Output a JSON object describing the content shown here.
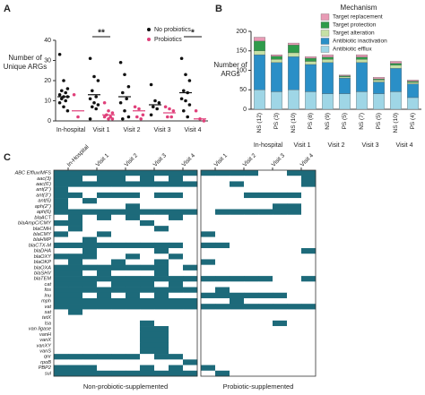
{
  "chart_data": [
    {
      "type": "strip",
      "panel": "A",
      "y_label": "Number of Unique ARGs",
      "categories": [
        "In-hospital",
        "Visit 1",
        "Visit 2",
        "Visit 3",
        "Visit 4"
      ],
      "ylim": [
        0,
        40
      ],
      "yticks": [
        0,
        10,
        20,
        30,
        40
      ],
      "significance": [
        null,
        "**",
        null,
        null,
        "*"
      ],
      "series": [
        {
          "name": "No probiotics",
          "color": "#111111",
          "values": [
            [
              33,
              20,
              16,
              15,
              14,
              13,
              12,
              12,
              11,
              10,
              9,
              7,
              5
            ],
            [
              31,
              22,
              20,
              15,
              12,
              11,
              9,
              8,
              7,
              6,
              1
            ],
            [
              29,
              23,
              17,
              14,
              11,
              9,
              5,
              2,
              1
            ],
            [
              18,
              10,
              9,
              7,
              6,
              3
            ],
            [
              31,
              23,
              20,
              15,
              14,
              11,
              10,
              8,
              5,
              2
            ]
          ],
          "means": [
            12,
            13,
            12,
            8,
            14
          ]
        },
        {
          "name": "Probiotics",
          "color": "#e0407a",
          "values": [
            [
              13,
              2
            ],
            [
              9,
              5,
              4,
              3,
              2,
              2,
              1,
              1
            ],
            [
              7,
              6,
              3,
              2,
              1
            ],
            [
              7,
              6,
              5,
              2,
              2
            ],
            [
              5,
              1,
              0
            ]
          ],
          "means": [
            5,
            3,
            5,
            4,
            1
          ]
        }
      ]
    },
    {
      "type": "bar",
      "panel": "B",
      "y_label": "Number of ARGs",
      "legend_title": "Mechanism",
      "categories": [
        "NS (12)",
        "PS (3)",
        "NS (10)",
        "PS (8)",
        "NS (9)",
        "PS (5)",
        "NS (7)",
        "PS (5)",
        "NS (10)",
        "PS (4)"
      ],
      "groups": [
        "In-hospital",
        "Visit 1",
        "Visit 2",
        "Visit 3",
        "Visit 4"
      ],
      "ylim": [
        0,
        200
      ],
      "yticks": [
        0,
        50,
        100,
        150,
        200
      ],
      "series": [
        {
          "name": "Antibiotic efflux",
          "color": "#9fd6e6",
          "values": [
            50,
            45,
            50,
            45,
            40,
            40,
            45,
            40,
            45,
            30
          ]
        },
        {
          "name": "Antibiotic inactivation",
          "color": "#2a8fc7",
          "values": [
            90,
            75,
            85,
            70,
            80,
            40,
            75,
            30,
            60,
            35
          ]
        },
        {
          "name": "Target alteration",
          "color": "#c5e0a5",
          "values": [
            10,
            8,
            10,
            8,
            8,
            3,
            8,
            5,
            8,
            4
          ]
        },
        {
          "name": "Target protection",
          "color": "#2e9b4a",
          "values": [
            25,
            8,
            20,
            8,
            6,
            3,
            6,
            3,
            5,
            3
          ]
        },
        {
          "name": "Target replacement",
          "color": "#e89bb5",
          "values": [
            10,
            4,
            5,
            4,
            6,
            2,
            6,
            4,
            5,
            3
          ]
        }
      ]
    },
    {
      "type": "heatmap",
      "panel": "C",
      "color": "#1d6a7a",
      "row_labels": [
        "ABC Efflux/MFS",
        "aac(3)",
        "aac(6')",
        "ant(2'')",
        "ant(3'')",
        "ant(6)",
        "aph(2'')",
        "aph(6)",
        "blaACT",
        "blaAmpC/CMY",
        "blaCMH",
        "blaCMY",
        "blaHMP",
        "blaCTX-M",
        "blaDHA",
        "blaOXY",
        "blaOKP",
        "blaOXA",
        "blaSHV",
        "blaTEM",
        "cat",
        "fos",
        "lnu",
        "mph",
        "vat",
        "sat",
        "tetX",
        "lsa",
        "van ligase",
        "vanH",
        "vanX",
        "vanXY",
        "vanS",
        "qnr",
        "rpoB",
        "PBP2",
        "sul"
      ],
      "blocks": [
        {
          "name": "Non-probiotic-supplemented",
          "x_labels": [
            "In-Hospital",
            "Visit 1",
            "Visit 2",
            "Visit 3",
            "Visit 4"
          ],
          "rows": [
            [
              1,
              1,
              1,
              1,
              1,
              1,
              1,
              1,
              1,
              1
            ],
            [
              1,
              1,
              0,
              1,
              1,
              0,
              1,
              0,
              1,
              0
            ],
            [
              1,
              1,
              1,
              1,
              1,
              1,
              1,
              1,
              1,
              1
            ],
            [
              1,
              0,
              0,
              0,
              0,
              0,
              0,
              0,
              0,
              0
            ],
            [
              1,
              1,
              0,
              1,
              1,
              1,
              0,
              1,
              1,
              0
            ],
            [
              1,
              0,
              1,
              0,
              0,
              0,
              0,
              0,
              0,
              0
            ],
            [
              1,
              0,
              0,
              0,
              0,
              1,
              0,
              0,
              0,
              0
            ],
            [
              1,
              1,
              1,
              1,
              1,
              1,
              1,
              1,
              1,
              1
            ],
            [
              0,
              1,
              0,
              1,
              0,
              1,
              0,
              0,
              1,
              0
            ],
            [
              1,
              1,
              0,
              0,
              0,
              0,
              1,
              0,
              0,
              0
            ],
            [
              0,
              1,
              0,
              0,
              0,
              0,
              0,
              1,
              0,
              0
            ],
            [
              1,
              0,
              0,
              1,
              0,
              0,
              0,
              0,
              0,
              0
            ],
            [
              0,
              0,
              1,
              0,
              0,
              0,
              0,
              0,
              0,
              0
            ],
            [
              1,
              1,
              1,
              1,
              1,
              1,
              1,
              1,
              1,
              0
            ],
            [
              0,
              0,
              1,
              0,
              0,
              0,
              0,
              1,
              0,
              0
            ],
            [
              1,
              1,
              1,
              0,
              0,
              1,
              0,
              0,
              1,
              0
            ],
            [
              0,
              1,
              0,
              0,
              1,
              0,
              0,
              1,
              0,
              0
            ],
            [
              1,
              1,
              1,
              1,
              1,
              1,
              1,
              1,
              0,
              1
            ],
            [
              1,
              1,
              0,
              1,
              0,
              0,
              0,
              1,
              0,
              0
            ],
            [
              1,
              1,
              1,
              1,
              1,
              1,
              1,
              1,
              1,
              1
            ],
            [
              1,
              1,
              1,
              0,
              1,
              1,
              1,
              0,
              1,
              0
            ],
            [
              1,
              1,
              1,
              1,
              1,
              1,
              1,
              1,
              1,
              1
            ],
            [
              1,
              1,
              0,
              1,
              0,
              1,
              0,
              1,
              0,
              0
            ],
            [
              1,
              1,
              1,
              1,
              1,
              1,
              1,
              1,
              1,
              1
            ],
            [
              1,
              1,
              1,
              1,
              1,
              1,
              1,
              1,
              1,
              1
            ],
            [
              0,
              1,
              0,
              0,
              0,
              0,
              0,
              0,
              0,
              0
            ],
            [
              0,
              0,
              0,
              0,
              0,
              0,
              0,
              0,
              0,
              0
            ],
            [
              0,
              0,
              0,
              0,
              0,
              0,
              1,
              0,
              0,
              0
            ],
            [
              0,
              0,
              0,
              0,
              0,
              0,
              1,
              1,
              0,
              0
            ],
            [
              0,
              0,
              0,
              0,
              0,
              0,
              1,
              1,
              0,
              0
            ],
            [
              0,
              0,
              0,
              0,
              0,
              0,
              1,
              1,
              0,
              0
            ],
            [
              0,
              0,
              0,
              0,
              0,
              0,
              1,
              1,
              0,
              0
            ],
            [
              0,
              0,
              0,
              0,
              0,
              0,
              1,
              1,
              0,
              0
            ],
            [
              1,
              1,
              1,
              1,
              1,
              1,
              0,
              1,
              1,
              0
            ],
            [
              0,
              0,
              0,
              0,
              0,
              0,
              0,
              0,
              0,
              1
            ],
            [
              1,
              1,
              1,
              0,
              0,
              0,
              1,
              0,
              1,
              0
            ],
            [
              1,
              1,
              1,
              1,
              1,
              1,
              1,
              1,
              1,
              1
            ]
          ]
        },
        {
          "name": "Probiotic-supplemented",
          "x_labels": [
            "Visit 1",
            "Visit 2",
            "Visit 3",
            "Visit 4"
          ],
          "rows": [
            [
              1,
              1,
              1,
              1,
              0,
              0,
              1,
              1
            ],
            [
              0,
              0,
              0,
              0,
              0,
              0,
              0,
              1
            ],
            [
              0,
              0,
              1,
              0,
              0,
              0,
              0,
              1
            ],
            [
              0,
              0,
              0,
              0,
              0,
              0,
              0,
              0
            ],
            [
              0,
              0,
              0,
              1,
              1,
              1,
              1,
              0
            ],
            [
              0,
              0,
              0,
              0,
              0,
              0,
              0,
              0
            ],
            [
              0,
              0,
              0,
              0,
              0,
              1,
              1,
              0
            ],
            [
              0,
              1,
              1,
              1,
              1,
              1,
              1,
              0
            ],
            [
              0,
              0,
              0,
              0,
              0,
              0,
              0,
              0
            ],
            [
              0,
              0,
              0,
              0,
              0,
              0,
              0,
              0
            ],
            [
              0,
              0,
              0,
              0,
              0,
              0,
              0,
              0
            ],
            [
              1,
              0,
              0,
              0,
              0,
              0,
              0,
              0
            ],
            [
              0,
              0,
              0,
              0,
              0,
              0,
              0,
              0
            ],
            [
              1,
              1,
              0,
              0,
              0,
              0,
              0,
              0
            ],
            [
              0,
              0,
              0,
              0,
              0,
              0,
              0,
              1
            ],
            [
              0,
              0,
              0,
              0,
              0,
              0,
              0,
              0
            ],
            [
              1,
              0,
              0,
              0,
              0,
              0,
              0,
              0
            ],
            [
              0,
              0,
              0,
              0,
              0,
              0,
              0,
              0
            ],
            [
              0,
              0,
              0,
              0,
              0,
              0,
              0,
              0
            ],
            [
              1,
              1,
              1,
              1,
              1,
              0,
              0,
              1
            ],
            [
              0,
              0,
              0,
              0,
              0,
              0,
              0,
              0
            ],
            [
              0,
              1,
              0,
              0,
              0,
              0,
              0,
              0
            ],
            [
              1,
              1,
              1,
              1,
              1,
              1,
              0,
              0
            ],
            [
              0,
              0,
              1,
              0,
              0,
              0,
              0,
              0
            ],
            [
              1,
              1,
              1,
              1,
              1,
              1,
              1,
              1
            ],
            [
              0,
              0,
              0,
              0,
              0,
              0,
              0,
              0
            ],
            [
              0,
              0,
              0,
              0,
              0,
              0,
              0,
              0
            ],
            [
              0,
              0,
              0,
              0,
              0,
              1,
              0,
              0
            ],
            [
              0,
              0,
              0,
              0,
              0,
              0,
              0,
              0
            ],
            [
              0,
              0,
              0,
              0,
              0,
              0,
              0,
              0
            ],
            [
              0,
              0,
              0,
              0,
              0,
              0,
              0,
              0
            ],
            [
              0,
              0,
              0,
              0,
              0,
              0,
              0,
              0
            ],
            [
              0,
              0,
              0,
              0,
              0,
              0,
              0,
              0
            ],
            [
              0,
              0,
              0,
              0,
              0,
              0,
              0,
              0
            ],
            [
              0,
              0,
              0,
              0,
              0,
              0,
              0,
              0
            ],
            [
              1,
              0,
              0,
              0,
              0,
              0,
              0,
              0
            ],
            [
              0,
              1,
              0,
              0,
              0,
              0,
              0,
              0
            ]
          ]
        }
      ]
    }
  ]
}
